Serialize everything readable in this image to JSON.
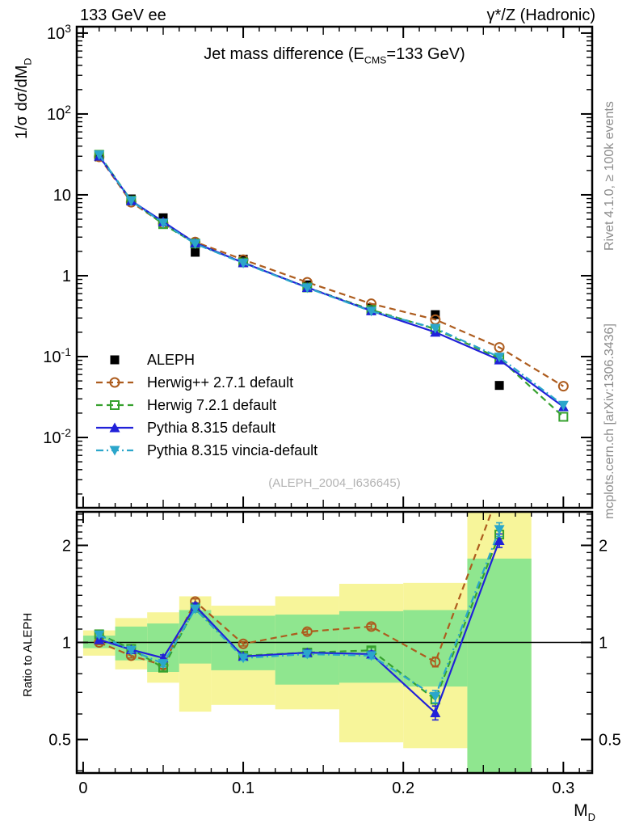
{
  "header": {
    "left": "133 GeV ee",
    "right": "γ*/Z (Hadronic)"
  },
  "title_segments": [
    {
      "t": "Jet mass difference (E"
    },
    {
      "t": "CMS",
      "sub": true
    },
    {
      "t": "=133 GeV)"
    }
  ],
  "axes": {
    "main_ylabel_segments": [
      {
        "t": "1/σ  dσ/dM"
      },
      {
        "t": "D",
        "sub": true
      }
    ],
    "ratio_ylabel": "Ratio to ALEPH",
    "xlabel_segments": [
      {
        "t": "M"
      },
      {
        "t": "D",
        "sub": true
      }
    ]
  },
  "side_notes": {
    "top": "Rivet 4.1.0, ≥ 100k events",
    "bottom": "mcplots.cern.ch [arXiv:1306.3436]"
  },
  "watermark": "(ALEPH_2004_I636645)",
  "colors": {
    "yellow_band": "#f7f59a",
    "green_band": "#8fe68f",
    "frame": "#000000",
    "gray_text": "#8c8c8c"
  },
  "chart_data": [
    {
      "type": "line",
      "panel": "main",
      "title": "Jet mass difference (E_CMS=133 GeV)",
      "xlabel": "M_D",
      "ylabel": "1/σ dσ/dM_D",
      "scale": {
        "x": "linear",
        "y": "log"
      },
      "xlim": [
        -0.004,
        0.318
      ],
      "ylim": [
        0.00135,
        1200
      ],
      "xticks": [
        0,
        0.1,
        0.2,
        0.3
      ],
      "ytick_exponents": [
        3,
        2,
        1,
        0,
        -1,
        -2
      ],
      "legend_position": "inside-left-middle",
      "series": [
        {
          "name": "ALEPH",
          "color": "#000000",
          "line": "none",
          "marker": "square-filled",
          "x": [
            0.01,
            0.03,
            0.05,
            0.07,
            0.1,
            0.14,
            0.18,
            0.22,
            0.26
          ],
          "y": [
            29.5,
            8.9,
            5.2,
            1.95,
            1.6,
            0.77,
            0.4,
            0.33,
            0.044
          ]
        },
        {
          "name": "Herwig++ 2.7.1 default",
          "color": "#ad5c1e",
          "line": "dashed",
          "marker": "circle-open",
          "x": [
            0.01,
            0.03,
            0.05,
            0.07,
            0.1,
            0.14,
            0.18,
            0.22,
            0.26,
            0.3
          ],
          "y": [
            29.5,
            8.1,
            4.42,
            2.61,
            1.58,
            0.83,
            0.45,
            0.287,
            0.13,
            0.043
          ]
        },
        {
          "name": "Herwig 7.2.1 default",
          "color": "#36a12e",
          "line": "dashed",
          "marker": "square-open",
          "x": [
            0.01,
            0.03,
            0.05,
            0.07,
            0.1,
            0.14,
            0.18,
            0.22,
            0.26,
            0.3
          ],
          "y": [
            31.3,
            8.5,
            4.34,
            2.5,
            1.46,
            0.716,
            0.378,
            0.219,
            0.095,
            0.018
          ]
        },
        {
          "name": "Pythia 8.315 default",
          "color": "#2121d9",
          "line": "solid",
          "marker": "triangle-up-filled",
          "x": [
            0.01,
            0.03,
            0.05,
            0.07,
            0.1,
            0.14,
            0.18,
            0.22,
            0.26,
            0.3
          ],
          "y": [
            30.1,
            8.46,
            4.65,
            2.54,
            1.45,
            0.716,
            0.368,
            0.2,
            0.091,
            0.024
          ]
        },
        {
          "name": "Pythia 8.315 vincia-default",
          "color": "#2ba6cb",
          "line": "dashdot",
          "marker": "triangle-down-filled",
          "x": [
            0.01,
            0.03,
            0.05,
            0.07,
            0.1,
            0.14,
            0.18,
            0.22,
            0.26,
            0.3
          ],
          "y": [
            31.1,
            8.41,
            4.47,
            2.48,
            1.43,
            0.708,
            0.364,
            0.224,
            0.0985,
            0.025
          ]
        }
      ]
    },
    {
      "type": "ratio-line",
      "panel": "ratio",
      "ylabel": "Ratio to ALEPH",
      "scale": {
        "x": "linear",
        "y": "log"
      },
      "xlim": [
        -0.004,
        0.318
      ],
      "ylim": [
        0.3936,
        2.541
      ],
      "yticks": [
        0.5,
        1,
        2
      ],
      "reference_line": 1,
      "bin_edges": [
        0,
        0.02,
        0.04,
        0.06,
        0.08,
        0.12,
        0.16,
        0.2,
        0.24,
        0.28
      ],
      "bands": [
        {
          "x": [
            0.0,
            0.02
          ],
          "yellow": [
            0.91,
            1.09
          ],
          "green": [
            0.96,
            1.05
          ]
        },
        {
          "x": [
            0.02,
            0.04
          ],
          "yellow": [
            0.825,
            1.19
          ],
          "green": [
            0.88,
            1.12
          ]
        },
        {
          "x": [
            0.04,
            0.06
          ],
          "yellow": [
            0.75,
            1.24
          ],
          "green": [
            0.81,
            1.145
          ]
        },
        {
          "x": [
            0.06,
            0.08
          ],
          "yellow": [
            0.61,
            1.39
          ],
          "green": [
            0.86,
            1.26
          ]
        },
        {
          "x": [
            0.08,
            0.12
          ],
          "yellow": [
            0.64,
            1.3
          ],
          "green": [
            0.82,
            1.21
          ]
        },
        {
          "x": [
            0.12,
            0.16
          ],
          "yellow": [
            0.62,
            1.39
          ],
          "green": [
            0.74,
            1.22
          ]
        },
        {
          "x": [
            0.16,
            0.2
          ],
          "yellow": [
            0.49,
            1.52
          ],
          "green": [
            0.75,
            1.25
          ]
        },
        {
          "x": [
            0.2,
            0.24
          ],
          "yellow": [
            0.47,
            1.53
          ],
          "green": [
            0.73,
            1.26
          ]
        },
        {
          "x": [
            0.24,
            0.28
          ],
          "yellow": [
            0.39,
            2.6
          ],
          "green": [
            0.39,
            1.82
          ]
        }
      ],
      "series": [
        {
          "name": "Herwig++ 2.7.1 default",
          "color": "#ad5c1e",
          "line": "dashed",
          "marker": "circle-open",
          "x": [
            0.01,
            0.03,
            0.05,
            0.07,
            0.1,
            0.14,
            0.18,
            0.22,
            0.26
          ],
          "y": [
            1.0,
            0.91,
            0.85,
            1.34,
            0.99,
            1.08,
            1.12,
            0.87,
            2.95
          ],
          "err": [
            0.015,
            0.015,
            0.02,
            0.025,
            0.015,
            0.02,
            0.02,
            0.03,
            0.12
          ]
        },
        {
          "name": "Herwig 7.2.1 default",
          "color": "#36a12e",
          "line": "dashed",
          "marker": "square-open",
          "x": [
            0.01,
            0.03,
            0.05,
            0.07,
            0.1,
            0.14,
            0.18,
            0.22,
            0.26
          ],
          "y": [
            1.06,
            0.955,
            0.835,
            1.28,
            0.91,
            0.93,
            0.945,
            0.665,
            2.16
          ],
          "err": [
            0.015,
            0.015,
            0.02,
            0.025,
            0.015,
            0.02,
            0.02,
            0.03,
            0.1
          ]
        },
        {
          "name": "Pythia 8.315 default",
          "color": "#2121d9",
          "line": "solid",
          "marker": "triangle-up-filled",
          "x": [
            0.01,
            0.03,
            0.05,
            0.07,
            0.1,
            0.14,
            0.18,
            0.22,
            0.26
          ],
          "y": [
            1.02,
            0.95,
            0.895,
            1.3,
            0.905,
            0.93,
            0.92,
            0.605,
            2.07
          ],
          "err": [
            0.015,
            0.015,
            0.02,
            0.025,
            0.015,
            0.02,
            0.02,
            0.03,
            0.1
          ]
        },
        {
          "name": "Pythia 8.315 vincia-default",
          "color": "#2ba6cb",
          "line": "dashdot",
          "marker": "triangle-down-filled",
          "x": [
            0.01,
            0.03,
            0.05,
            0.07,
            0.1,
            0.14,
            0.18,
            0.22,
            0.26
          ],
          "y": [
            1.055,
            0.945,
            0.86,
            1.27,
            0.895,
            0.92,
            0.91,
            0.68,
            2.24
          ],
          "err": [
            0.015,
            0.015,
            0.02,
            0.025,
            0.015,
            0.02,
            0.02,
            0.03,
            0.11
          ]
        }
      ]
    }
  ]
}
